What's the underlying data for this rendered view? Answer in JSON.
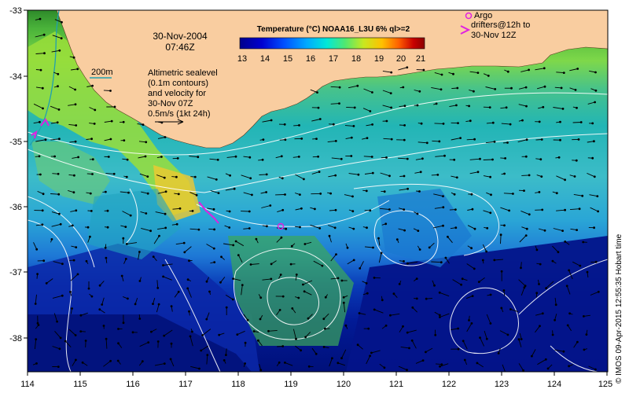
{
  "map": {
    "date_line1": "30-Nov-2004",
    "date_line2": "07:46Z",
    "depth_contour_label": "200m",
    "altimetry_lines": [
      "Altimetric sealevel",
      "(0.1m contours)",
      "and velocity for",
      "30-Nov 07Z"
    ],
    "velocity_scale_label": "0.5m/s (1kt 24h)",
    "argo_label": "Argo",
    "drifters_lines": [
      "drifters@12h to",
      "30-Nov 12Z"
    ],
    "credit_text": "© IMOS 09-Apr-2015 12:55:35 Hobart time",
    "colorbar": {
      "title": "Temperature (°C) NOAA16_L3U 6% ql>=2",
      "ticks": [
        "13",
        "14",
        "15",
        "16",
        "17",
        "18",
        "19",
        "20",
        "21"
      ],
      "colors": [
        "#00008c",
        "#0000d0",
        "#0050ff",
        "#00a8ff",
        "#00e8d8",
        "#50e870",
        "#c8e820",
        "#ffc000",
        "#ff6000",
        "#c80000",
        "#8c0000"
      ]
    },
    "x_ticks": [
      "114",
      "115",
      "116",
      "117",
      "118",
      "119",
      "120",
      "121",
      "122",
      "123",
      "124",
      "125"
    ],
    "y_ticks": [
      "-33",
      "-34",
      "-35",
      "-36",
      "-37",
      "-38"
    ],
    "land_color": "#f9cda0",
    "drifter_color": "#e020e0"
  }
}
